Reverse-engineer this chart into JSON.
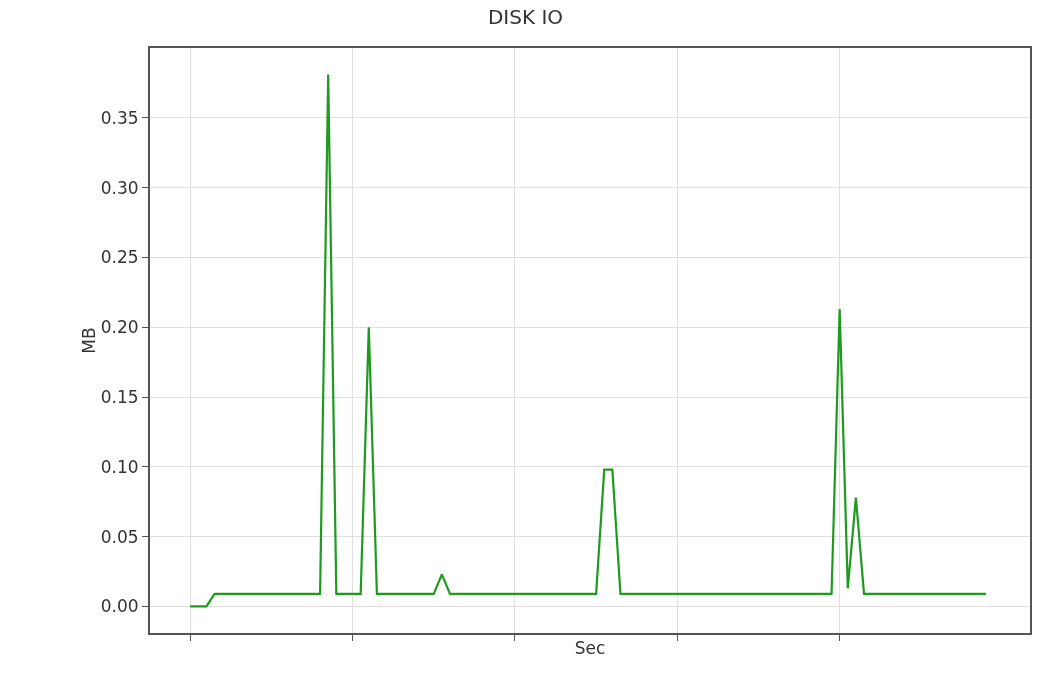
{
  "chart_data": {
    "type": "line",
    "title": "DISK IO",
    "xlabel": "Sec",
    "ylabel": "MB",
    "categories": [
      null,
      null,
      null,
      null,
      null,
      null,
      null,
      null,
      null,
      null,
      null,
      null,
      null,
      null,
      null,
      null,
      null,
      null,
      null,
      null,
      null,
      null,
      null,
      null,
      null,
      null,
      null,
      null,
      null,
      null,
      null,
      null,
      null,
      null,
      null,
      null,
      null,
      null,
      null,
      null,
      null,
      null,
      null,
      null,
      null,
      null,
      null,
      null,
      null,
      null,
      null,
      null,
      null,
      null,
      null,
      null,
      null,
      null,
      null,
      null,
      null,
      null,
      null,
      null,
      null,
      null,
      null,
      null,
      null,
      null,
      null,
      null,
      null,
      null,
      null,
      null,
      null,
      null,
      null,
      null,
      null,
      null,
      null,
      null,
      null,
      null,
      null,
      null,
      null,
      null,
      null,
      null,
      null,
      null,
      null,
      null,
      null,
      null,
      null
    ],
    "series": [
      {
        "color": "#1f9a1f",
        "values": [
          0,
          0,
          0,
          0.009,
          0.009,
          0.009,
          0.009,
          0.009,
          0.009,
          0.009,
          0.009,
          0.009,
          0.009,
          0.009,
          0.009,
          0.009,
          0.009,
          0.381,
          0.009,
          0.009,
          0.009,
          0.009,
          0.2,
          0.009,
          0.009,
          0.009,
          0.009,
          0.009,
          0.009,
          0.009,
          0.009,
          0.023,
          0.009,
          0.009,
          0.009,
          0.009,
          0.009,
          0.009,
          0.009,
          0.009,
          0.009,
          0.009,
          0.009,
          0.009,
          0.009,
          0.009,
          0.009,
          0.009,
          0.009,
          0.009,
          0.009,
          0.098,
          0.098,
          0.009,
          0.009,
          0.009,
          0.009,
          0.009,
          0.009,
          0.009,
          0.009,
          0.009,
          0.009,
          0.009,
          0.009,
          0.009,
          0.009,
          0.009,
          0.009,
          0.009,
          0.009,
          0.009,
          0.009,
          0.009,
          0.009,
          0.009,
          0.009,
          0.009,
          0.009,
          0.009,
          0.213,
          0.013,
          0.078,
          0.009,
          0.009,
          0.009,
          0.009,
          0.009,
          0.009,
          0.009,
          0.009,
          0.009,
          0.009,
          0.009,
          0.009,
          0.009,
          0.009,
          0.009,
          0.009
        ]
      }
    ],
    "ylim": [
      -0.019,
      0.4
    ],
    "yticks": [
      {
        "value": 0,
        "label": "0.00"
      },
      {
        "value": 0.05,
        "label": "0.05"
      },
      {
        "value": 0.1,
        "label": "0.10"
      },
      {
        "value": 0.15,
        "label": "0.15"
      },
      {
        "value": 0.2,
        "label": "0.20"
      },
      {
        "value": 0.25,
        "label": "0.25"
      },
      {
        "value": 0.3,
        "label": "0.30"
      },
      {
        "value": 0.35,
        "label": "0.35"
      }
    ],
    "tick_labels": "y",
    "grid": true,
    "marker": "none",
    "line_style": "solid"
  }
}
